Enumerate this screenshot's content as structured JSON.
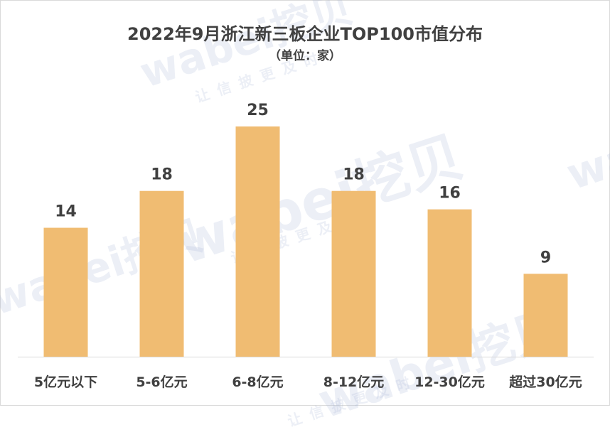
{
  "chart_data": {
    "type": "bar",
    "title": "2022年9月浙江新三板企业TOP100市值分布",
    "subtitle": "（单位：家）",
    "categories": [
      "5亿元以下",
      "5-6亿元",
      "6-8亿元",
      "8-12亿元",
      "12-30亿元",
      "超过30亿元"
    ],
    "values": [
      14,
      18,
      25,
      18,
      16,
      9
    ],
    "data_labels": [
      "14",
      "18",
      "25",
      "18",
      "16",
      "9"
    ],
    "bar_color": "#f0bc72",
    "grid": false,
    "legend": "none"
  },
  "watermark": {
    "main": "wabei挖贝",
    "sub": "让信披更及时"
  }
}
